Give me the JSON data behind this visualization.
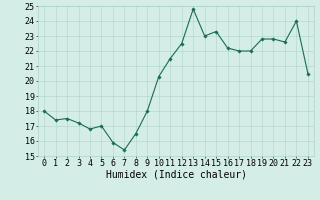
{
  "x": [
    0,
    1,
    2,
    3,
    4,
    5,
    6,
    7,
    8,
    9,
    10,
    11,
    12,
    13,
    14,
    15,
    16,
    17,
    18,
    19,
    20,
    21,
    22,
    23
  ],
  "y": [
    18.0,
    17.4,
    17.5,
    17.2,
    16.8,
    17.0,
    15.9,
    15.4,
    16.5,
    18.0,
    20.3,
    21.5,
    22.5,
    24.8,
    23.0,
    23.3,
    22.2,
    22.0,
    22.0,
    22.8,
    22.8,
    22.6,
    24.0,
    20.5
  ],
  "xlabel": "Humidex (Indice chaleur)",
  "ylim": [
    15,
    25
  ],
  "xlim": [
    -0.5,
    23.5
  ],
  "yticks": [
    15,
    16,
    17,
    18,
    19,
    20,
    21,
    22,
    23,
    24,
    25
  ],
  "xticks": [
    0,
    1,
    2,
    3,
    4,
    5,
    6,
    7,
    8,
    9,
    10,
    11,
    12,
    13,
    14,
    15,
    16,
    17,
    18,
    19,
    20,
    21,
    22,
    23
  ],
  "line_color": "#1a6b5a",
  "marker_color": "#1a6b5a",
  "bg_color": "#d4ede6",
  "grid_color": "#b0d4ca",
  "xlabel_fontsize": 7,
  "tick_fontsize": 6,
  "figwidth": 3.2,
  "figheight": 2.0,
  "dpi": 100
}
